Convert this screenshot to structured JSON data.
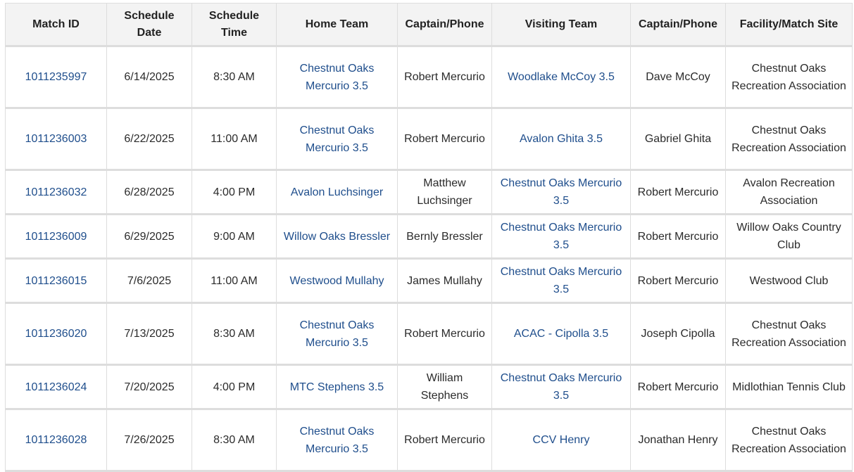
{
  "table": {
    "headers": [
      "Match ID",
      "Schedule Date",
      "Schedule Time",
      "Home Team",
      "Captain/Phone",
      "Visiting Team",
      "Captain/Phone",
      "Facility/Match Site"
    ],
    "rows": [
      {
        "match_id": "1011235997",
        "date": "6/14/2025",
        "time": "8:30 AM",
        "home_team": "Chestnut Oaks Mercurio 3.5",
        "home_captain": "Robert Mercurio",
        "visiting_team": "Woodlake McCoy 3.5",
        "visiting_captain": "Dave McCoy",
        "facility": "Chestnut Oaks Recreation Association"
      },
      {
        "match_id": "1011236003",
        "date": "6/22/2025",
        "time": "11:00 AM",
        "home_team": "Chestnut Oaks Mercurio 3.5",
        "home_captain": "Robert Mercurio",
        "visiting_team": "Avalon Ghita 3.5",
        "visiting_captain": "Gabriel Ghita",
        "facility": "Chestnut Oaks Recreation Association"
      },
      {
        "match_id": "1011236032",
        "date": "6/28/2025",
        "time": "4:00 PM",
        "home_team": "Avalon Luchsinger",
        "home_captain": "Matthew Luchsinger",
        "visiting_team": "Chestnut Oaks Mercurio 3.5",
        "visiting_captain": "Robert Mercurio",
        "facility": "Avalon Recreation Association"
      },
      {
        "match_id": "1011236009",
        "date": "6/29/2025",
        "time": "9:00 AM",
        "home_team": "Willow Oaks Bressler",
        "home_captain": "Bernly Bressler",
        "visiting_team": "Chestnut Oaks Mercurio 3.5",
        "visiting_captain": "Robert Mercurio",
        "facility": "Willow Oaks Country Club"
      },
      {
        "match_id": "1011236015",
        "date": "7/6/2025",
        "time": "11:00 AM",
        "home_team": "Westwood Mullahy",
        "home_captain": "James Mullahy",
        "visiting_team": "Chestnut Oaks Mercurio 3.5",
        "visiting_captain": "Robert Mercurio",
        "facility": "Westwood Club"
      },
      {
        "match_id": "1011236020",
        "date": "7/13/2025",
        "time": "8:30 AM",
        "home_team": "Chestnut Oaks Mercurio 3.5",
        "home_captain": "Robert Mercurio",
        "visiting_team": "ACAC - Cipolla 3.5",
        "visiting_captain": "Joseph Cipolla",
        "facility": "Chestnut Oaks Recreation Association"
      },
      {
        "match_id": "1011236024",
        "date": "7/20/2025",
        "time": "4:00 PM",
        "home_team": "MTC Stephens 3.5",
        "home_captain": "William Stephens",
        "visiting_team": "Chestnut Oaks Mercurio 3.5",
        "visiting_captain": "Robert Mercurio",
        "facility": "Midlothian Tennis Club"
      },
      {
        "match_id": "1011236028",
        "date": "7/26/2025",
        "time": "8:30 AM",
        "home_team": "Chestnut Oaks Mercurio 3.5",
        "home_captain": "Robert Mercurio",
        "visiting_team": "CCV Henry",
        "visiting_captain": "Jonathan Henry",
        "facility": "Chestnut Oaks Recreation Association"
      }
    ]
  },
  "colors": {
    "link": "#1f4e8c",
    "header_bg": "#f3f3f3",
    "border": "#dddddd"
  }
}
